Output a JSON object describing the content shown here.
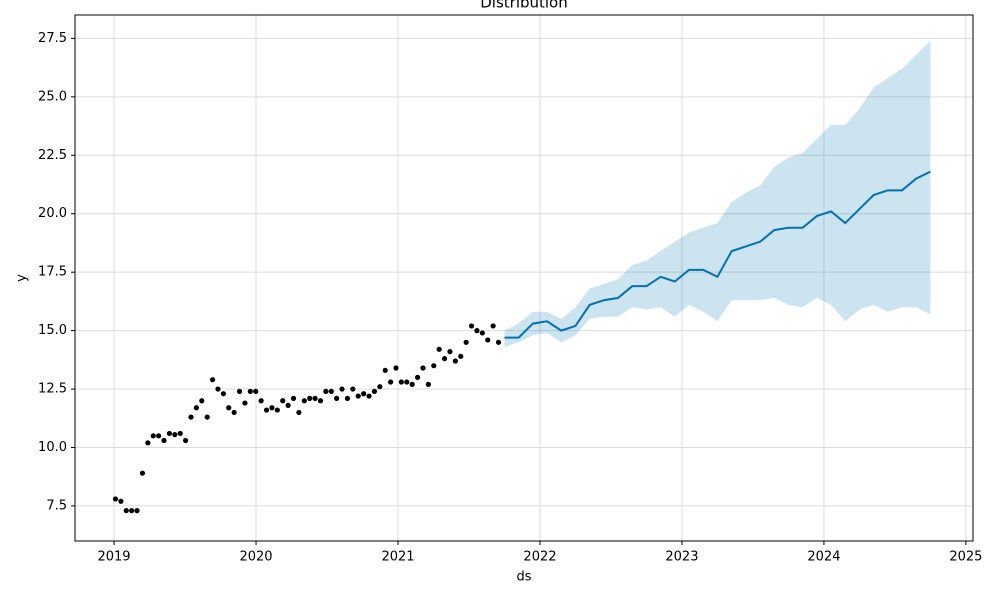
{
  "chart_data": {
    "type": "forecast",
    "title": "Distribution",
    "xlabel": "ds",
    "ylabel": "y",
    "xlim": [
      2018.725,
      2025.05
    ],
    "ylim": [
      6.0,
      28.5
    ],
    "xticks": [
      2019,
      2020,
      2021,
      2022,
      2023,
      2024,
      2025
    ],
    "yticks": [
      7.5,
      {
        "value": 10,
        "label": "10.0"
      },
      12.5,
      {
        "value": 15,
        "label": "15.0"
      },
      17.5,
      {
        "value": 20,
        "label": "20.0"
      },
      22.5,
      {
        "value": 25,
        "label": "25.0"
      },
      27.5
    ],
    "grid": true,
    "observed": {
      "color": "#000000",
      "x": [
        2019.01,
        2019.048,
        2019.086,
        2019.124,
        2019.162,
        2019.2,
        2019.238,
        2019.276,
        2019.314,
        2019.352,
        2019.39,
        2019.428,
        2019.466,
        2019.504,
        2019.542,
        2019.58,
        2019.618,
        2019.656,
        2019.694,
        2019.732,
        2019.77,
        2019.808,
        2019.846,
        2019.884,
        2019.922,
        2019.96,
        2019.998,
        2020.036,
        2020.074,
        2020.112,
        2020.15,
        2020.188,
        2020.226,
        2020.264,
        2020.302,
        2020.34,
        2020.378,
        2020.416,
        2020.454,
        2020.492,
        2020.53,
        2020.568,
        2020.606,
        2020.644,
        2020.682,
        2020.72,
        2020.758,
        2020.796,
        2020.834,
        2020.872,
        2020.91,
        2020.948,
        2020.986,
        2021.024,
        2021.062,
        2021.1,
        2021.138,
        2021.176,
        2021.214,
        2021.252,
        2021.29,
        2021.328,
        2021.366,
        2021.404,
        2021.442,
        2021.48,
        2021.518,
        2021.556,
        2021.594,
        2021.632,
        2021.67,
        2021.708
      ],
      "values": [
        7.8,
        7.7,
        7.3,
        7.3,
        7.3,
        8.9,
        10.2,
        10.5,
        10.5,
        10.3,
        10.6,
        10.55,
        10.6,
        10.3,
        11.3,
        11.7,
        12.0,
        11.3,
        12.9,
        12.5,
        12.3,
        11.7,
        11.5,
        12.4,
        11.9,
        12.4,
        12.4,
        12.0,
        11.6,
        11.7,
        11.6,
        12.0,
        11.8,
        12.1,
        11.5,
        12.0,
        12.1,
        12.1,
        12.0,
        12.4,
        12.4,
        12.1,
        12.5,
        12.1,
        12.5,
        12.2,
        12.3,
        12.2,
        12.4,
        12.6,
        13.3,
        12.8,
        13.4,
        12.8,
        12.8,
        12.7,
        13.0,
        13.4,
        12.7,
        13.5,
        14.2,
        13.8,
        14.1,
        13.7,
        13.9,
        14.5,
        15.2,
        15.0,
        14.9,
        14.6,
        15.2,
        14.5
      ]
    },
    "forecast": {
      "color": "#0072B2",
      "band_opacity": 0.2,
      "x": [
        2021.75,
        2021.85,
        2021.95,
        2022.05,
        2022.15,
        2022.25,
        2022.35,
        2022.45,
        2022.55,
        2022.65,
        2022.75,
        2022.85,
        2022.95,
        2023.05,
        2023.15,
        2023.25,
        2023.35,
        2023.45,
        2023.55,
        2023.65,
        2023.75,
        2023.85,
        2023.95,
        2024.05,
        2024.15,
        2024.25,
        2024.35,
        2024.45,
        2024.55,
        2024.65,
        2024.75
      ],
      "values": [
        14.7,
        14.7,
        15.3,
        15.4,
        15.0,
        15.2,
        16.1,
        16.3,
        16.4,
        16.9,
        16.9,
        17.3,
        17.1,
        17.6,
        17.6,
        17.3,
        18.4,
        18.6,
        18.8,
        19.3,
        19.4,
        19.4,
        19.9,
        20.1,
        19.6,
        20.2,
        20.8,
        21.0,
        21.0,
        21.5,
        21.8
      ],
      "lower": [
        14.3,
        14.5,
        14.8,
        14.9,
        14.5,
        14.8,
        15.5,
        15.6,
        15.6,
        16.0,
        15.9,
        16.0,
        15.6,
        16.1,
        15.8,
        15.4,
        16.3,
        16.3,
        16.3,
        16.4,
        16.1,
        16.0,
        16.4,
        16.1,
        15.4,
        15.9,
        16.1,
        15.8,
        16.0,
        16.0,
        15.7
      ],
      "upper": [
        15.0,
        15.3,
        15.8,
        15.8,
        15.5,
        16.0,
        16.8,
        17.0,
        17.2,
        17.8,
        18.0,
        18.4,
        18.8,
        19.2,
        19.4,
        19.6,
        20.5,
        20.9,
        21.2,
        22.0,
        22.4,
        22.6,
        23.2,
        23.8,
        23.8,
        24.5,
        25.4,
        25.8,
        26.2,
        26.8,
        27.4
      ]
    }
  }
}
